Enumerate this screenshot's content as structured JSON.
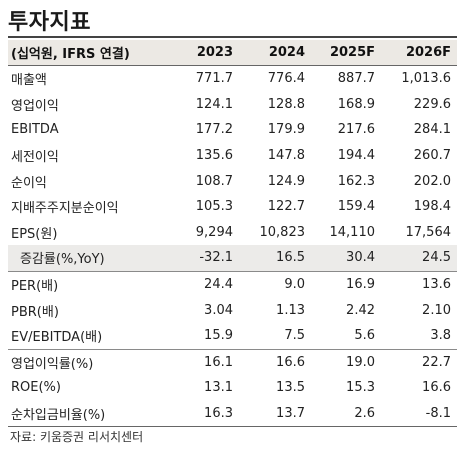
{
  "title": "투자지표",
  "header": {
    "label": "(십억원, IFRS 연결)",
    "years": [
      "2023",
      "2024",
      "2025F",
      "2026F"
    ]
  },
  "rows": [
    {
      "label": "매출액",
      "values": [
        "771.7",
        "776.4",
        "887.7",
        "1,013.6"
      ]
    },
    {
      "label": "영업이익",
      "values": [
        "124.1",
        "128.8",
        "168.9",
        "229.6"
      ]
    },
    {
      "label": "EBITDA",
      "values": [
        "177.2",
        "179.9",
        "217.6",
        "284.1"
      ]
    },
    {
      "label": "세전이익",
      "values": [
        "135.6",
        "147.8",
        "194.4",
        "260.7"
      ]
    },
    {
      "label": "순이익",
      "values": [
        "108.7",
        "124.9",
        "162.3",
        "202.0"
      ]
    },
    {
      "label": "지배주주지분순이익",
      "values": [
        "105.3",
        "122.7",
        "159.4",
        "198.4"
      ]
    },
    {
      "label": "EPS(원)",
      "values": [
        "9,294",
        "10,823",
        "14,110",
        "17,564"
      ]
    },
    {
      "label": "증감률(%,YoY)",
      "values": [
        "-32.1",
        "16.5",
        "30.4",
        "24.5"
      ]
    },
    {
      "label": "PER(배)",
      "values": [
        "24.4",
        "9.0",
        "16.9",
        "13.6"
      ]
    },
    {
      "label": "PBR(배)",
      "values": [
        "3.04",
        "1.13",
        "2.42",
        "2.10"
      ]
    },
    {
      "label": "EV/EBITDA(배)",
      "values": [
        "15.9",
        "7.5",
        "5.6",
        "3.8"
      ]
    },
    {
      "label": "영업이익률(%)",
      "values": [
        "16.1",
        "16.6",
        "19.0",
        "22.7"
      ]
    },
    {
      "label": "ROE(%)",
      "values": [
        "13.1",
        "13.5",
        "15.3",
        "16.6"
      ]
    },
    {
      "label": "순차입금비율(%)",
      "values": [
        "16.3",
        "13.7",
        "2.6",
        "-8.1"
      ]
    }
  ],
  "source": "자료: 키움증권 리서치센터"
}
